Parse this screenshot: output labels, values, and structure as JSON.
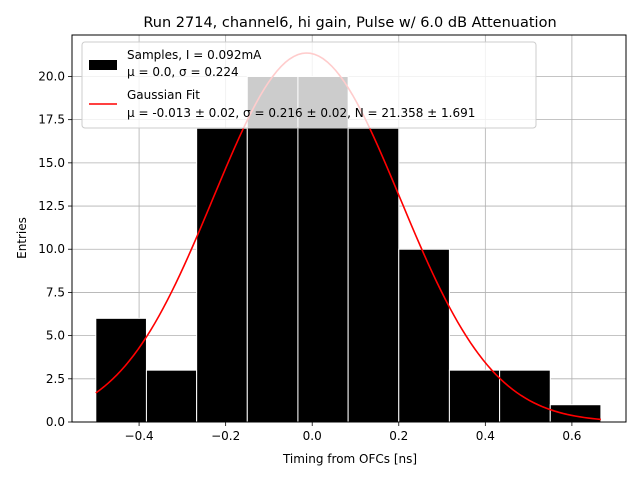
{
  "chart_data": {
    "type": "bar",
    "title": "Run 2714, channel6, hi gain, Pulse w/ 6.0 dB Attenuation",
    "xlabel": "Timing from OFCs [ns]",
    "ylabel": "Entries",
    "xlim": [
      -0.555,
      0.725
    ],
    "ylim": [
      0,
      22.4
    ],
    "x_ticks": [
      -0.4,
      -0.2,
      0.0,
      0.2,
      0.4,
      0.6
    ],
    "x_tick_labels": [
      "−0.4",
      "−0.2",
      "0.0",
      "0.2",
      "0.4",
      "0.6"
    ],
    "y_ticks": [
      0,
      2.5,
      5,
      7.5,
      10,
      12.5,
      15,
      17.5,
      20
    ],
    "y_tick_labels": [
      "0.0",
      "2.5",
      "5.0",
      "7.5",
      "10.0",
      "12.5",
      "15.0",
      "17.5",
      "20.0"
    ],
    "grid": true,
    "legend_position": "top-left",
    "series": [
      {
        "name": "Samples, I = 0.092mA",
        "name_line2": "μ = 0.0, σ = 0.224",
        "kind": "histogram",
        "color": "#000000",
        "bin_edges": [
          -0.5,
          -0.383,
          -0.267,
          -0.15,
          -0.033,
          0.083,
          0.2,
          0.317,
          0.433,
          0.55,
          0.667
        ],
        "values": [
          6,
          3,
          17,
          20,
          20,
          17,
          10,
          3,
          3,
          1
        ]
      },
      {
        "name": "Gaussian Fit",
        "name_line2": "μ = -0.013 ± 0.02, σ = 0.216 ± 0.02, N = 21.358 ± 1.691",
        "kind": "line",
        "color": "#ff0000",
        "mu": -0.013,
        "sigma": 0.216,
        "N": 21.358,
        "x_range": [
          -0.5,
          0.667
        ]
      }
    ]
  }
}
